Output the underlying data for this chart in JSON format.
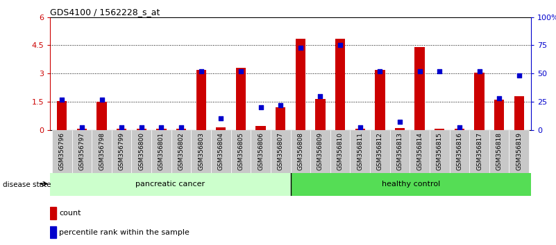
{
  "title": "GDS4100 / 1562228_s_at",
  "samples": [
    "GSM356796",
    "GSM356797",
    "GSM356798",
    "GSM356799",
    "GSM356800",
    "GSM356801",
    "GSM356802",
    "GSM356803",
    "GSM356804",
    "GSM356805",
    "GSM356806",
    "GSM356807",
    "GSM356808",
    "GSM356809",
    "GSM356810",
    "GSM356811",
    "GSM356812",
    "GSM356813",
    "GSM356814",
    "GSM356815",
    "GSM356816",
    "GSM356817",
    "GSM356818",
    "GSM356819"
  ],
  "counts": [
    1.55,
    0.05,
    1.5,
    0.05,
    0.05,
    0.05,
    0.05,
    3.2,
    0.15,
    3.3,
    0.2,
    1.2,
    4.85,
    1.65,
    4.85,
    0.05,
    3.2,
    0.1,
    4.4,
    0.05,
    0.05,
    3.05,
    1.6,
    1.8
  ],
  "percentile_ranks": [
    27,
    2,
    27,
    2,
    2,
    2,
    2,
    52,
    10,
    52,
    20,
    22,
    73,
    30,
    75,
    2,
    52,
    7,
    52,
    52,
    2,
    52,
    28,
    48
  ],
  "cancer_count": 12,
  "control_count": 12,
  "ylim_left": [
    0,
    6
  ],
  "ylim_right": [
    0,
    100
  ],
  "yticks_left": [
    0,
    1.5,
    3.0,
    4.5,
    6
  ],
  "ytick_labels_left": [
    "0",
    "1.5",
    "3",
    "4.5",
    "6"
  ],
  "yticks_right": [
    0,
    25,
    50,
    75,
    100
  ],
  "ytick_labels_right": [
    "0",
    "25",
    "50",
    "75",
    "100%"
  ],
  "bar_color": "#cc0000",
  "dot_color": "#0000cc",
  "cancer_bg": "#ccffcc",
  "control_bg": "#55dd55",
  "xticklabel_bg": "#c8c8c8",
  "legend_bar_label": "count",
  "legend_dot_label": "percentile rank within the sample",
  "disease_state_label": "disease state",
  "cancer_label": "pancreatic cancer",
  "control_label": "healthy control"
}
